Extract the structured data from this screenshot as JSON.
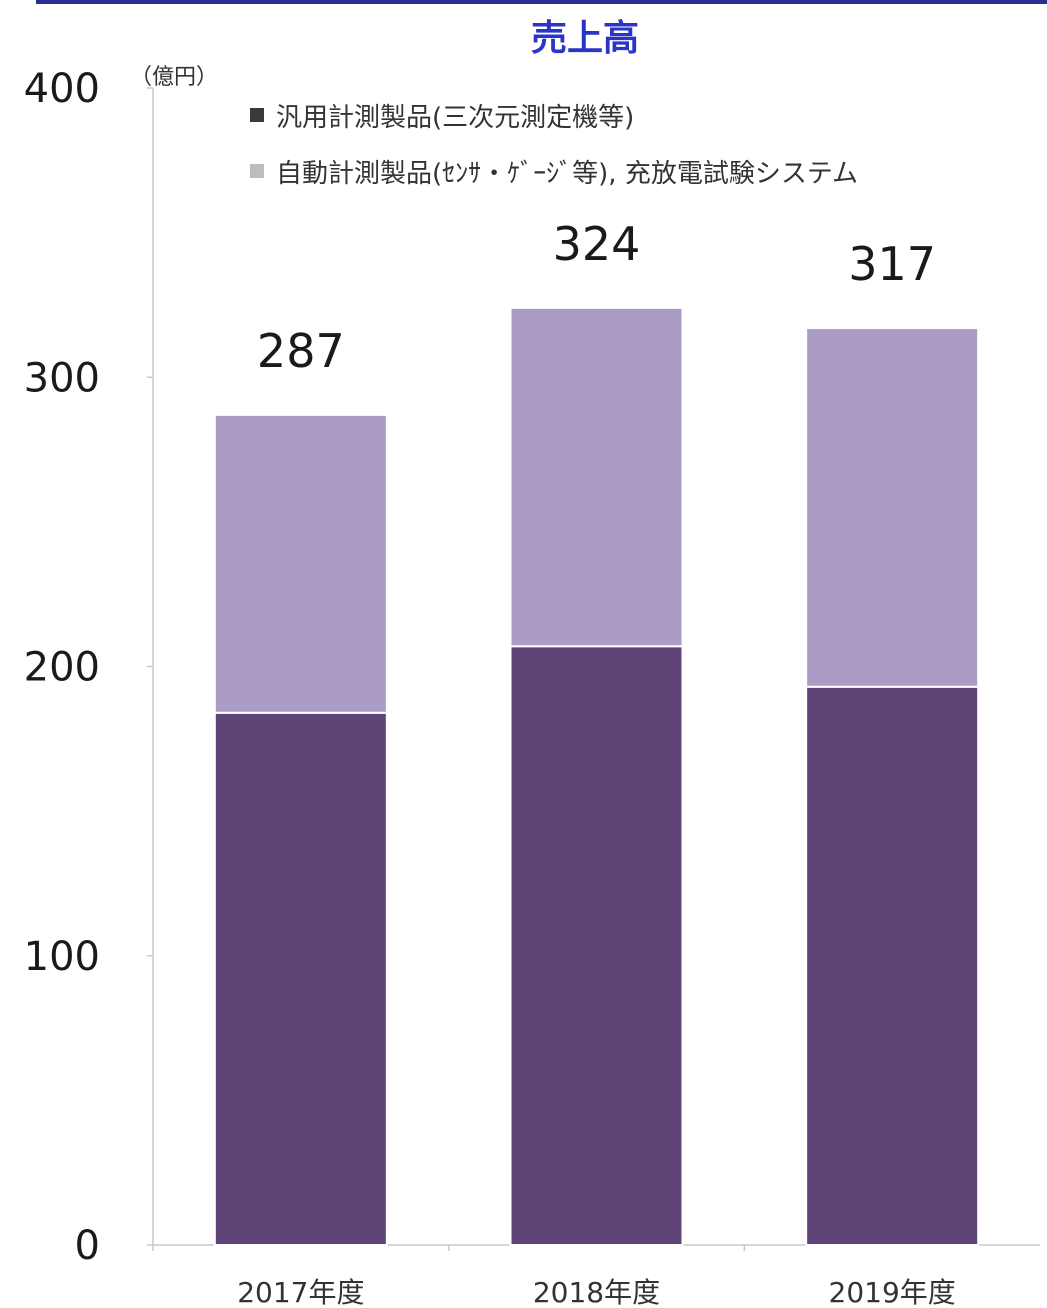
{
  "chart_data": {
    "type": "bar",
    "stacked": true,
    "title": "売上高",
    "unit_label": "（億円）",
    "categories": [
      "2017年度",
      "2018年度",
      "2019年度"
    ],
    "series": [
      {
        "name": "汎用計測製品(三次元測定機等)",
        "values": [
          184,
          207,
          193
        ],
        "color": "#5f4478"
      },
      {
        "name": "自動計測製品(ｾﾝｻ・ｹﾞｰｼﾞ等), 充放電試験システム",
        "values": [
          103,
          117,
          124
        ],
        "color": "#ab9cc6"
      }
    ],
    "totals": [
      287,
      324,
      317
    ],
    "y_ticks": [
      0,
      100,
      200,
      300,
      400
    ],
    "ylim": [
      0,
      400
    ],
    "grid": false,
    "legend_position": "top-left"
  }
}
